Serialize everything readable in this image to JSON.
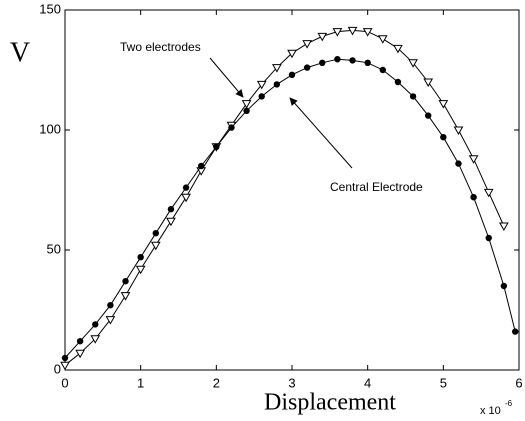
{
  "chart_data": {
    "type": "line",
    "xlabel": "Displacement",
    "ylabel": "V",
    "x_multiplier": {
      "base": "x 10",
      "exponent": "-6"
    },
    "xlim": [
      0,
      6
    ],
    "xticks": [
      0,
      1,
      2,
      3,
      4,
      5,
      6
    ],
    "ylim": [
      0,
      150
    ],
    "yticks": [
      0,
      50,
      100,
      150
    ],
    "grid": false,
    "annotations": [
      "Two electrodes",
      "Central Electrode"
    ],
    "series": [
      {
        "name": "Two electrodes",
        "color": "#000000",
        "marker": "triangle-down",
        "x": [
          0,
          0.2,
          0.4,
          0.6,
          0.8,
          1.0,
          1.2,
          1.4,
          1.6,
          1.8,
          2.0,
          2.2,
          2.4,
          2.6,
          2.8,
          3.0,
          3.2,
          3.4,
          3.6,
          3.8,
          4.0,
          4.2,
          4.4,
          4.6,
          4.8,
          5.0,
          5.2,
          5.4,
          5.6,
          5.8
        ],
        "values": [
          2,
          7,
          13,
          21,
          31,
          42,
          52,
          62,
          72,
          83,
          93,
          102,
          111,
          119,
          126,
          132,
          136,
          139,
          141,
          141.5,
          141,
          138,
          134,
          128,
          120,
          111,
          100,
          88,
          74,
          60
        ]
      },
      {
        "name": "Central Electrode",
        "color": "#000000",
        "marker": "circle",
        "x": [
          0,
          0.2,
          0.4,
          0.6,
          0.8,
          1.0,
          1.2,
          1.4,
          1.6,
          1.8,
          2.0,
          2.2,
          2.4,
          2.6,
          2.8,
          3.0,
          3.2,
          3.4,
          3.6,
          3.8,
          4.0,
          4.2,
          4.4,
          4.6,
          4.8,
          5.0,
          5.2,
          5.4,
          5.6,
          5.8,
          5.95
        ],
        "values": [
          5,
          12,
          19,
          27,
          37,
          47,
          57,
          67,
          76,
          85,
          93,
          101,
          108,
          114,
          119,
          123,
          126,
          128,
          129.5,
          129,
          128,
          125,
          120,
          114,
          106,
          97,
          86,
          72,
          55,
          35,
          16
        ]
      }
    ]
  }
}
